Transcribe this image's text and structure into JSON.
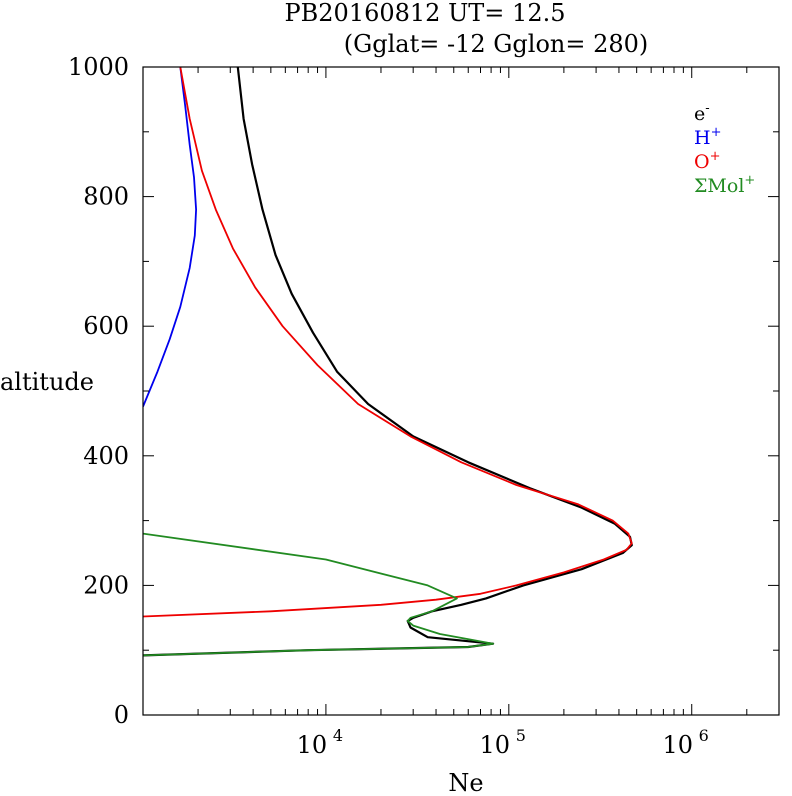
{
  "chart_data": {
    "type": "line",
    "title": "PB20160812   UT=  12.5",
    "subtitle": "(Gglat= -12   Gglon=  280)",
    "xlabel": "Ne",
    "ylabel": "altitude",
    "x_scale": "log",
    "xlim": [
      1000,
      3000000
    ],
    "ylim": [
      0,
      1000
    ],
    "y_ticks": [
      0,
      200,
      400,
      600,
      800,
      1000
    ],
    "x_ticks": [
      {
        "base": "10",
        "exp": "4",
        "value": 10000
      },
      {
        "base": "10",
        "exp": "5",
        "value": 100000
      },
      {
        "base": "10",
        "exp": "6",
        "value": 1000000
      }
    ],
    "grid": false,
    "legend_position": "top-right",
    "series": [
      {
        "name": "e-",
        "label_base": "e",
        "label_sup": "-",
        "color": "#000000",
        "points": [
          [
            1000,
            92
          ],
          [
            8000,
            100
          ],
          [
            60000,
            105
          ],
          [
            82000,
            110
          ],
          [
            36000,
            120
          ],
          [
            29000,
            135
          ],
          [
            28000,
            145
          ],
          [
            30000,
            150
          ],
          [
            38000,
            160
          ],
          [
            55000,
            170
          ],
          [
            75000,
            180
          ],
          [
            120000,
            200
          ],
          [
            250000,
            225
          ],
          [
            420000,
            250
          ],
          [
            470000,
            262
          ],
          [
            460000,
            275
          ],
          [
            380000,
            295
          ],
          [
            250000,
            320
          ],
          [
            130000,
            350
          ],
          [
            60000,
            390
          ],
          [
            30000,
            430
          ],
          [
            17000,
            480
          ],
          [
            11500,
            530
          ],
          [
            8500,
            590
          ],
          [
            6500,
            650
          ],
          [
            5300,
            710
          ],
          [
            4500,
            780
          ],
          [
            3950,
            850
          ],
          [
            3550,
            920
          ],
          [
            3300,
            1000
          ]
        ]
      },
      {
        "name": "H+",
        "label_base": "H",
        "label_sup": "+",
        "color": "#0000ee",
        "points": [
          [
            1000,
            476
          ],
          [
            1200,
            530
          ],
          [
            1400,
            580
          ],
          [
            1600,
            630
          ],
          [
            1800,
            690
          ],
          [
            1920,
            740
          ],
          [
            1950,
            780
          ],
          [
            1900,
            830
          ],
          [
            1800,
            880
          ],
          [
            1700,
            940
          ],
          [
            1600,
            1000
          ]
        ]
      },
      {
        "name": "O+",
        "label_base": "O",
        "label_sup": "+",
        "color": "#ee0000",
        "points": [
          [
            1000,
            152
          ],
          [
            5000,
            160
          ],
          [
            20000,
            170
          ],
          [
            40000,
            178
          ],
          [
            70000,
            187
          ],
          [
            110000,
            200
          ],
          [
            200000,
            220
          ],
          [
            330000,
            240
          ],
          [
            440000,
            255
          ],
          [
            470000,
            265
          ],
          [
            450000,
            280
          ],
          [
            370000,
            300
          ],
          [
            240000,
            325
          ],
          [
            110000,
            355
          ],
          [
            55000,
            390
          ],
          [
            29000,
            430
          ],
          [
            15000,
            480
          ],
          [
            9000,
            540
          ],
          [
            5800,
            600
          ],
          [
            4100,
            660
          ],
          [
            3100,
            720
          ],
          [
            2500,
            780
          ],
          [
            2100,
            840
          ],
          [
            1800,
            920
          ],
          [
            1600,
            1000
          ]
        ]
      },
      {
        "name": "ΣMol+",
        "label_base": "ΣMol",
        "label_sup": "+",
        "color": "#228b22",
        "points": [
          [
            1000,
            280
          ],
          [
            10000,
            240
          ],
          [
            36000,
            200
          ],
          [
            52000,
            180
          ],
          [
            38000,
            160
          ],
          [
            29000,
            150
          ],
          [
            28000,
            145
          ],
          [
            30000,
            138
          ],
          [
            42000,
            125
          ],
          [
            82000,
            110
          ],
          [
            60000,
            105
          ],
          [
            8000,
            100
          ],
          [
            1000,
            92
          ]
        ]
      }
    ]
  }
}
